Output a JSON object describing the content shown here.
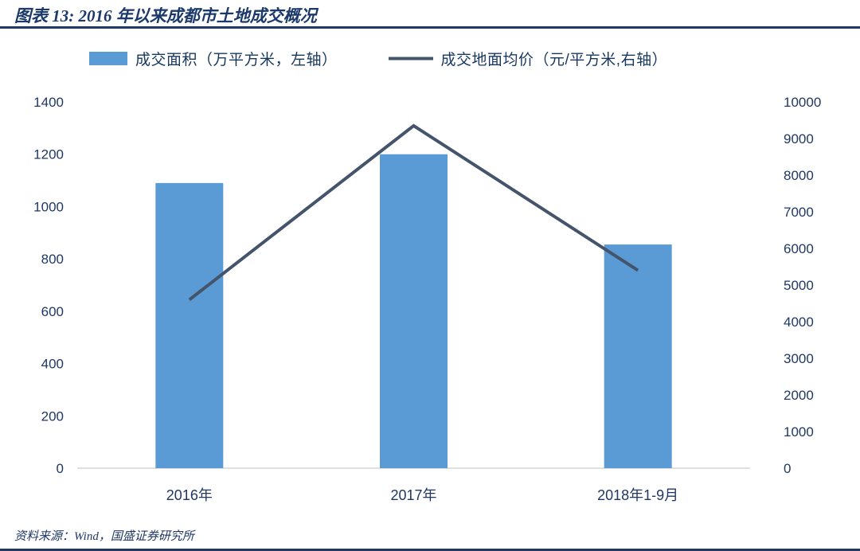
{
  "header": {
    "title": "图表 13:  2016 年以来成都市土地成交概况"
  },
  "legend": [
    {
      "label": "成交面积（万平方米，左轴）",
      "swatch": "bar",
      "color": "#5B9BD5"
    },
    {
      "label": "成交地面均价（元/平方米,右轴）",
      "swatch": "line",
      "color": "#44546A"
    }
  ],
  "chart_data": {
    "type": "bar",
    "subtype": "bar+line combo, dual axis",
    "title": "2016 年以来成都市土地成交概况",
    "categories": [
      "2016年",
      "2017年",
      "2018年1-9月"
    ],
    "series": [
      {
        "name": "成交面积（万平方米，左轴）",
        "type": "bar",
        "axis": "left",
        "values": [
          1090,
          1200,
          855
        ],
        "color": "#5B9BD5"
      },
      {
        "name": "成交地面均价（元/平方米,右轴）",
        "type": "line",
        "axis": "right",
        "values": [
          4600,
          9350,
          5400
        ],
        "color": "#44546A"
      }
    ],
    "left_axis": {
      "min": 0,
      "max": 1400,
      "step": 200,
      "ticks": [
        0,
        200,
        400,
        600,
        800,
        1000,
        1200,
        1400
      ]
    },
    "right_axis": {
      "min": 0,
      "max": 10000,
      "step": 1000,
      "ticks": [
        0,
        1000,
        2000,
        3000,
        4000,
        5000,
        6000,
        7000,
        8000,
        9000,
        10000
      ]
    },
    "grid": false,
    "legend_position": "top",
    "axis_line_color": "#BFBFBF"
  },
  "footer": {
    "source": "资料来源：Wind，国盛证券研究所"
  }
}
